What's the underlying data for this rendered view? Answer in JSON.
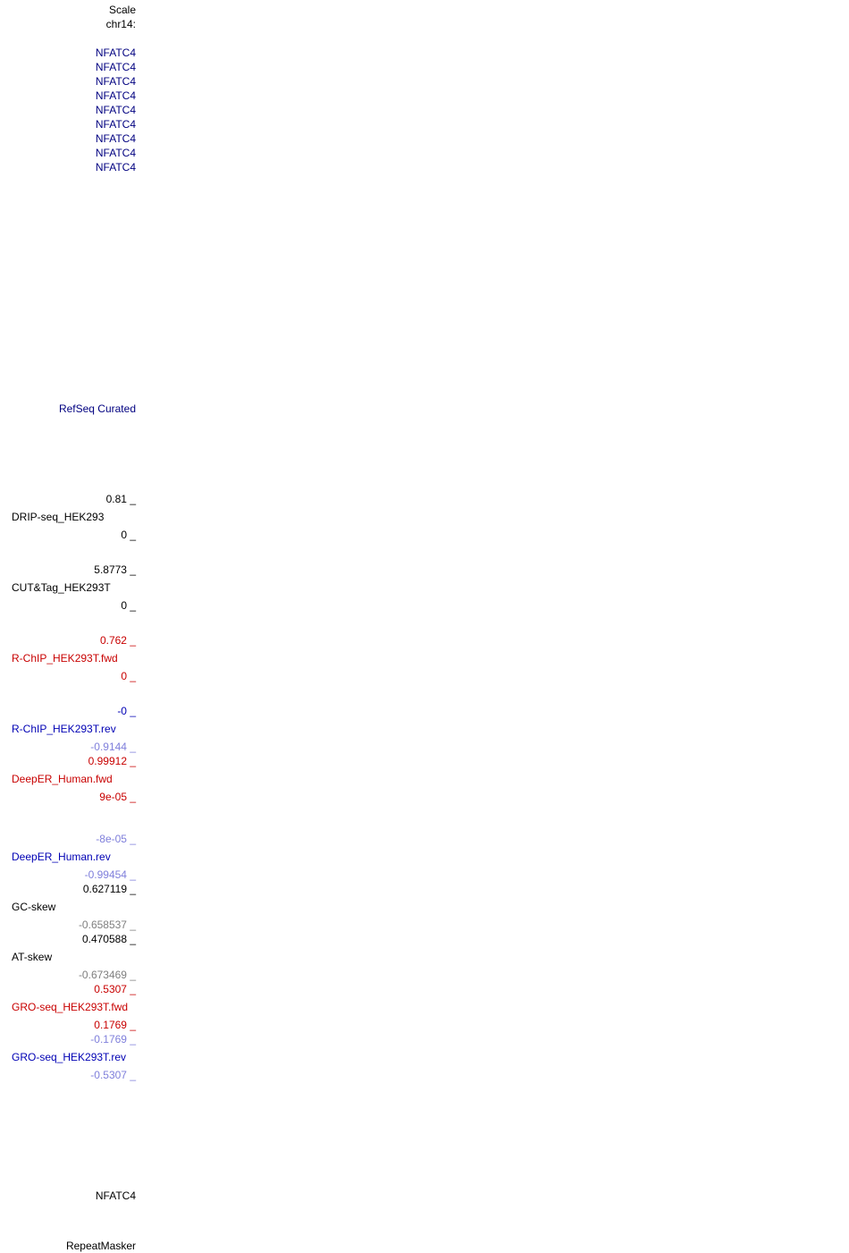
{
  "header": {
    "scale_label": "Scale",
    "chrom_label": "chr14:"
  },
  "genes": [
    "NFATC4",
    "NFATC4",
    "NFATC4",
    "NFATC4",
    "NFATC4",
    "NFATC4",
    "NFATC4",
    "NFATC4",
    "NFATC4"
  ],
  "refseq": {
    "label": "RefSeq Curated"
  },
  "tracks": {
    "drip": {
      "label": "DRIP-seq_HEK293",
      "max": "0.81 _",
      "min": "0 _"
    },
    "cuttag": {
      "label": "CUT&Tag_HEK293T",
      "max": "5.8773 _",
      "min": "0 _"
    },
    "rchip_fwd": {
      "label": "R-ChIP_HEK293T.fwd",
      "max": "0.762 _",
      "min": "0 _"
    },
    "rchip_rev": {
      "label": "R-ChIP_HEK293T.rev",
      "max": "-0 _",
      "min": "-0.9144 _"
    },
    "deeper_fwd": {
      "label": "DeepER_Human.fwd",
      "max": "0.99912 _",
      "min": "9e-05 _"
    },
    "deeper_rev": {
      "label": "DeepER_Human.rev",
      "max": "-8e-05 _",
      "min": "-0.99454 _"
    },
    "gc_skew": {
      "label": "GC-skew",
      "max": "0.627119 _",
      "min": "-0.658537 _"
    },
    "at_skew": {
      "label": "AT-skew",
      "max": "0.470588 _",
      "min": "-0.673469 _"
    },
    "gro_fwd": {
      "label": "GRO-seq_HEK293T.fwd",
      "max": "0.5307 _",
      "min": "0.1769 _"
    },
    "gro_rev": {
      "label": "GRO-seq_HEK293T.rev",
      "max": "-0.1769 _",
      "min": "-0.5307 _"
    }
  },
  "bottom_gene": {
    "label": "NFATC4"
  },
  "repeatmasker": {
    "label": "RepeatMasker"
  },
  "colors": {
    "black": "#000000",
    "navy": "#000080",
    "blue": "#0000b4",
    "red": "#c80000",
    "light_blue": "#7f7fdb",
    "gray": "#7f7f7f"
  }
}
